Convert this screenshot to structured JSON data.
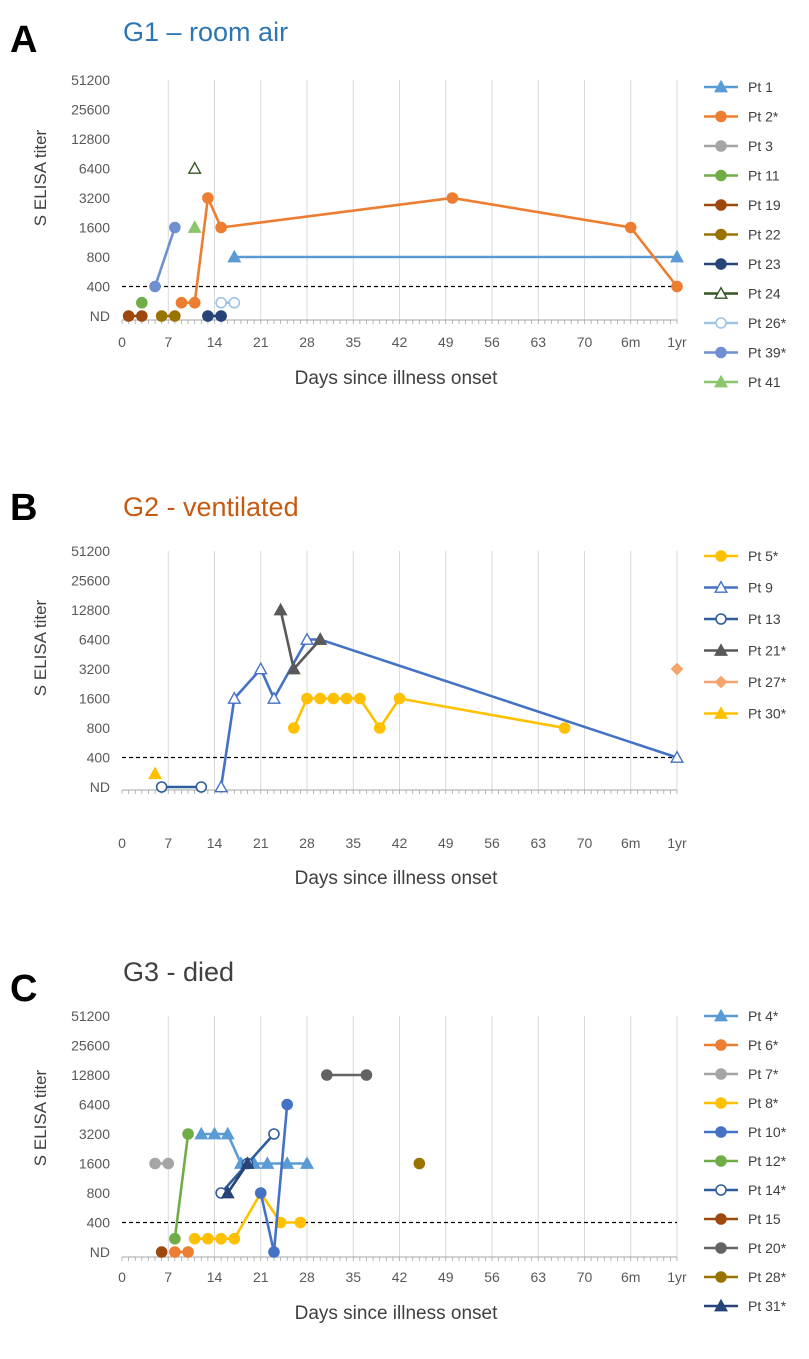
{
  "figure": {
    "x_tick_labels": [
      "0",
      "7",
      "14",
      "21",
      "28",
      "35",
      "42",
      "49",
      "56",
      "63",
      "70",
      "6m",
      "1yr"
    ],
    "y_tick_labels": [
      "ND",
      "400",
      "800",
      "1600",
      "3200",
      "6400",
      "12800",
      "25600",
      "51200"
    ],
    "y_label": "S ELISA titer",
    "x_label": "Days since illness onset",
    "threshold": 400
  },
  "chart_data": [
    {
      "panel_letter": "A",
      "title": "G1 – room air",
      "title_color": "#2E75B6",
      "type": "line",
      "series": [
        {
          "name": "Pt 1",
          "color": "#5B9BD5",
          "marker": "triangle",
          "filled": true,
          "points": [
            [
              17,
              800
            ],
            [
              "1yr",
              800
            ]
          ]
        },
        {
          "name": "Pt 2*",
          "color": "#ED7D31",
          "marker": "circle",
          "filled": true,
          "points": [
            [
              9,
              "<400"
            ],
            [
              11,
              "<400"
            ],
            [
              13,
              3200
            ],
            [
              15,
              1600
            ],
            [
              50,
              3200
            ],
            [
              "6m",
              1600
            ],
            [
              "1yr",
              400
            ]
          ]
        },
        {
          "name": "Pt 3",
          "color": "#A5A5A5",
          "marker": "circle",
          "filled": true,
          "points": []
        },
        {
          "name": "Pt 11",
          "color": "#70AD47",
          "marker": "circle",
          "filled": true,
          "points": [
            [
              3,
              "<400"
            ]
          ]
        },
        {
          "name": "Pt 19",
          "color": "#9E480E",
          "marker": "circle",
          "filled": true,
          "points": [
            [
              1,
              "ND"
            ],
            [
              3,
              "ND"
            ]
          ]
        },
        {
          "name": "Pt 22",
          "color": "#997300",
          "marker": "circle",
          "filled": true,
          "points": [
            [
              6,
              "ND"
            ],
            [
              8,
              "ND"
            ]
          ]
        },
        {
          "name": "Pt 23",
          "color": "#264478",
          "marker": "circle",
          "filled": true,
          "points": [
            [
              13,
              "ND"
            ],
            [
              15,
              "ND"
            ]
          ]
        },
        {
          "name": "Pt 24",
          "color": "#375623",
          "marker": "triangle",
          "filled": false,
          "points": [
            [
              11,
              6400
            ]
          ]
        },
        {
          "name": "Pt 26*",
          "color": "#9DC3E6",
          "marker": "circle",
          "filled": false,
          "points": [
            [
              15,
              "<400"
            ],
            [
              17,
              "<400"
            ]
          ]
        },
        {
          "name": "Pt 39*",
          "color": "#6F8FD0",
          "marker": "circle",
          "filled": true,
          "points": [
            [
              5,
              400
            ],
            [
              8,
              1600
            ]
          ]
        },
        {
          "name": "Pt 41",
          "color": "#8BC66B",
          "marker": "triangle",
          "filled": true,
          "points": [
            [
              11,
              1600
            ]
          ]
        }
      ]
    },
    {
      "panel_letter": "B",
      "title": "G2 - ventilated",
      "title_color": "#C55A11",
      "type": "line",
      "series": [
        {
          "name": "Pt 5*",
          "color": "#FFC000",
          "marker": "circle",
          "filled": true,
          "points": [
            [
              26,
              800
            ],
            [
              28,
              1600
            ],
            [
              30,
              1600
            ],
            [
              32,
              1600
            ],
            [
              34,
              1600
            ],
            [
              36,
              1600
            ],
            [
              39,
              800
            ],
            [
              42,
              1600
            ],
            [
              67,
              800
            ]
          ]
        },
        {
          "name": "Pt 9",
          "color": "#4472C4",
          "marker": "triangle",
          "filled": false,
          "points": [
            [
              15,
              "ND"
            ],
            [
              17,
              1600
            ],
            [
              21,
              3200
            ],
            [
              23,
              1600
            ],
            [
              28,
              6400
            ],
            [
              30,
              6400
            ],
            [
              "1yr",
              400
            ]
          ]
        },
        {
          "name": "Pt 13",
          "color": "#2E5E9B",
          "marker": "circle",
          "filled": false,
          "points": [
            [
              6,
              "ND"
            ],
            [
              12,
              "ND"
            ]
          ]
        },
        {
          "name": "Pt 21*",
          "color": "#595959",
          "marker": "triangle",
          "filled": true,
          "points": [
            [
              24,
              12800
            ],
            [
              26,
              3200
            ],
            [
              30,
              6400
            ]
          ]
        },
        {
          "name": "Pt 27*",
          "color": "#F4A46C",
          "marker": "diamond",
          "filled": true,
          "points": [
            [
              "1yr",
              3200
            ]
          ]
        },
        {
          "name": "Pt 30*",
          "color": "#FFC000",
          "marker": "triangle",
          "filled": true,
          "points": [
            [
              5,
              "<400"
            ]
          ]
        }
      ]
    },
    {
      "panel_letter": "C",
      "title": "G3 - died",
      "title_color": "#404040",
      "type": "line",
      "series": [
        {
          "name": "Pt 4*",
          "color": "#5B9BD5",
          "marker": "triangle",
          "filled": true,
          "points": [
            [
              12,
              3200
            ],
            [
              14,
              3200
            ],
            [
              16,
              3200
            ],
            [
              18,
              1600
            ],
            [
              20,
              1600
            ],
            [
              22,
              1600
            ],
            [
              25,
              1600
            ],
            [
              28,
              1600
            ]
          ]
        },
        {
          "name": "Pt 6*",
          "color": "#ED7D31",
          "marker": "circle",
          "filled": true,
          "points": [
            [
              8,
              "ND"
            ],
            [
              10,
              "ND"
            ]
          ]
        },
        {
          "name": "Pt 7*",
          "color": "#A5A5A5",
          "marker": "circle",
          "filled": true,
          "points": [
            [
              5,
              1600
            ],
            [
              7,
              1600
            ]
          ]
        },
        {
          "name": "Pt 8*",
          "color": "#FFC000",
          "marker": "circle",
          "filled": true,
          "points": [
            [
              11,
              "<400"
            ],
            [
              13,
              "<400"
            ],
            [
              15,
              "<400"
            ],
            [
              17,
              "<400"
            ],
            [
              21,
              800
            ],
            [
              24,
              400
            ],
            [
              27,
              400
            ]
          ]
        },
        {
          "name": "Pt 10*",
          "color": "#4472C4",
          "marker": "circle",
          "filled": true,
          "points": [
            [
              21,
              800
            ],
            [
              23,
              "ND"
            ],
            [
              25,
              6400
            ]
          ]
        },
        {
          "name": "Pt 12*",
          "color": "#70AD47",
          "marker": "circle",
          "filled": true,
          "points": [
            [
              8,
              "<400"
            ],
            [
              10,
              3200
            ]
          ]
        },
        {
          "name": "Pt 14*",
          "color": "#2E5E9B",
          "marker": "circle",
          "filled": false,
          "points": [
            [
              15,
              800
            ],
            [
              19,
              1600
            ],
            [
              23,
              3200
            ]
          ]
        },
        {
          "name": "Pt 15",
          "color": "#9E480E",
          "marker": "circle",
          "filled": true,
          "points": [
            [
              6,
              "ND"
            ]
          ]
        },
        {
          "name": "Pt 20*",
          "color": "#636363",
          "marker": "circle",
          "filled": true,
          "points": [
            [
              31,
              12800
            ],
            [
              37,
              12800
            ]
          ]
        },
        {
          "name": "Pt 28*",
          "color": "#997300",
          "marker": "circle",
          "filled": true,
          "points": [
            [
              45,
              1600
            ]
          ]
        },
        {
          "name": "Pt 31*",
          "color": "#264478",
          "marker": "triangle",
          "filled": true,
          "points": [
            [
              16,
              800
            ],
            [
              19,
              1600
            ]
          ]
        }
      ]
    }
  ]
}
